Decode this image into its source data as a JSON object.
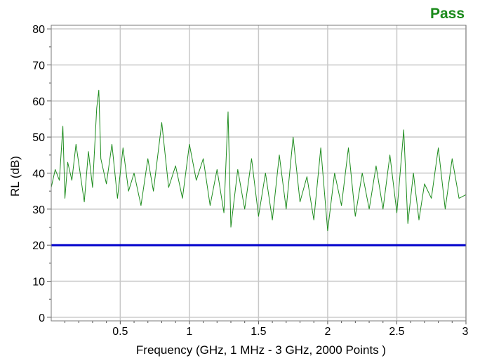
{
  "status": {
    "text": "Pass",
    "color": "#1a8a1a"
  },
  "chart_data": {
    "type": "line",
    "title": "",
    "xlabel": "Frequency (GHz, 1 MHz - 3 GHz, 2000 Points )",
    "ylabel": "RL (dB)",
    "xlim": [
      0.001,
      3.0
    ],
    "ylim": [
      -1,
      81
    ],
    "x_ticks": [
      0.5,
      1,
      1.5,
      2,
      2.5,
      3
    ],
    "x_tick_labels": [
      "0.5",
      "1",
      "1.5",
      "2",
      "2.5",
      "3"
    ],
    "y_ticks": [
      0,
      10,
      20,
      30,
      40,
      50,
      60,
      70,
      80
    ],
    "y_tick_labels": [
      "0",
      "10",
      "20",
      "30",
      "40",
      "50",
      "60",
      "70",
      "80"
    ],
    "grid": true,
    "series": [
      {
        "color": "#1e8c1e",
        "x": [
          0.001,
          0.03,
          0.06,
          0.085,
          0.1,
          0.12,
          0.15,
          0.18,
          0.21,
          0.24,
          0.27,
          0.3,
          0.33,
          0.345,
          0.36,
          0.4,
          0.44,
          0.48,
          0.52,
          0.56,
          0.6,
          0.65,
          0.7,
          0.74,
          0.8,
          0.85,
          0.9,
          0.95,
          1.0,
          1.05,
          1.1,
          1.15,
          1.2,
          1.25,
          1.28,
          1.3,
          1.35,
          1.4,
          1.45,
          1.5,
          1.55,
          1.6,
          1.65,
          1.7,
          1.75,
          1.8,
          1.85,
          1.9,
          1.95,
          2.0,
          2.05,
          2.1,
          2.15,
          2.2,
          2.25,
          2.3,
          2.35,
          2.4,
          2.45,
          2.5,
          2.55,
          2.58,
          2.62,
          2.66,
          2.7,
          2.75,
          2.8,
          2.85,
          2.9,
          2.95,
          3.0
        ],
        "y": [
          36,
          41,
          38,
          53,
          33,
          43,
          38,
          48,
          40,
          32,
          46,
          36,
          58,
          63,
          44,
          37,
          48,
          33,
          47,
          35,
          40,
          31,
          44,
          35,
          54,
          36,
          42,
          33,
          48,
          38,
          44,
          31,
          41,
          29,
          57,
          25,
          41,
          30,
          44,
          28,
          40,
          27,
          45,
          30,
          50,
          32,
          39,
          27,
          47,
          24,
          40,
          31,
          47,
          28,
          40,
          30,
          42,
          30,
          45,
          29,
          52,
          26,
          40,
          27,
          37,
          33,
          47,
          30,
          44,
          33,
          34
        ]
      },
      {
        "color": "#0000cc",
        "x": [
          0.001,
          3.0
        ],
        "y": [
          20,
          20
        ]
      }
    ]
  }
}
